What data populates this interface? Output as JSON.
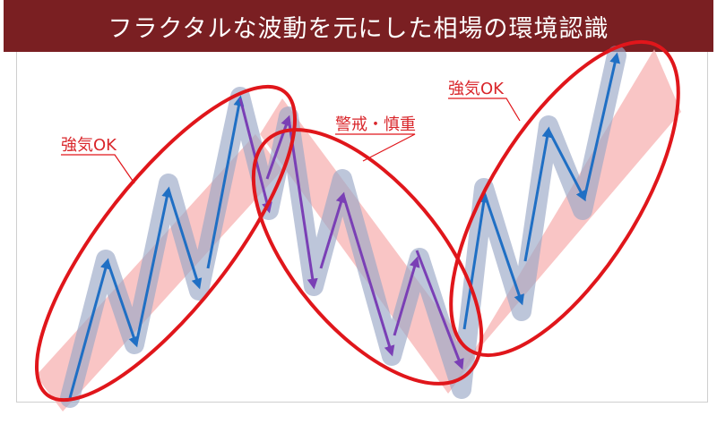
{
  "header": {
    "title": "フラクタルな波動を元にした相場の環境認識"
  },
  "labels": {
    "left": "強気OK",
    "middle": "警戒・慎重",
    "right": "強気OK"
  },
  "colors": {
    "header_bg": "#7a1f22",
    "band_fill": "#f7b2b2",
    "ellipse_stroke": "#e0161b",
    "blue_arrow": "#1f6fc4",
    "purple_arrow": "#7a3fb5",
    "shadow_wave": "#9aa7c6",
    "label_red": "#d9262b"
  }
}
